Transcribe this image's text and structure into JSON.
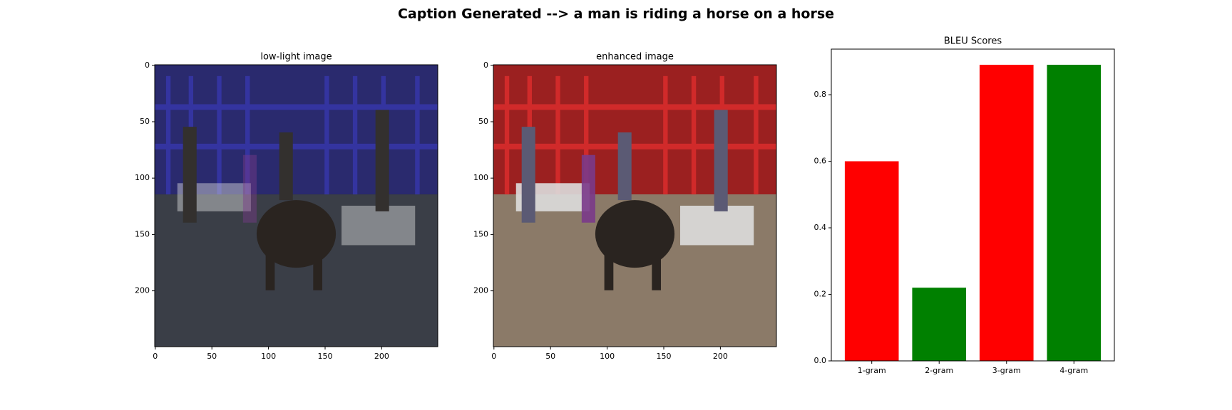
{
  "title": "Caption Generated --> a man is riding a horse on a horse",
  "chart_data": [
    {
      "type": "image",
      "title": "low-light image",
      "xlim": [
        -0.5,
        249.5
      ],
      "ylim": [
        249.5,
        -0.5
      ],
      "xticks": [
        0,
        50,
        100,
        150,
        200
      ],
      "yticks": [
        0,
        50,
        100,
        150,
        200
      ]
    },
    {
      "type": "image",
      "title": "enhanced image",
      "xlim": [
        -0.5,
        249.5
      ],
      "ylim": [
        249.5,
        -0.5
      ],
      "xticks": [
        0,
        50,
        100,
        150,
        200
      ],
      "yticks": [
        0,
        50,
        100,
        150,
        200
      ]
    },
    {
      "type": "bar",
      "title": "BLEU Scores",
      "categories": [
        "1-gram",
        "2-gram",
        "3-gram",
        "4-gram"
      ],
      "values": [
        0.6,
        0.22,
        0.89,
        0.89
      ],
      "colors": [
        "#ff0000",
        "#008000",
        "#ff0000",
        "#008000"
      ],
      "xlim": [
        -0.6,
        3.6
      ],
      "ylim": [
        0,
        0.937
      ],
      "yticks": [
        0.0,
        0.2,
        0.4,
        0.6,
        0.8
      ]
    }
  ]
}
